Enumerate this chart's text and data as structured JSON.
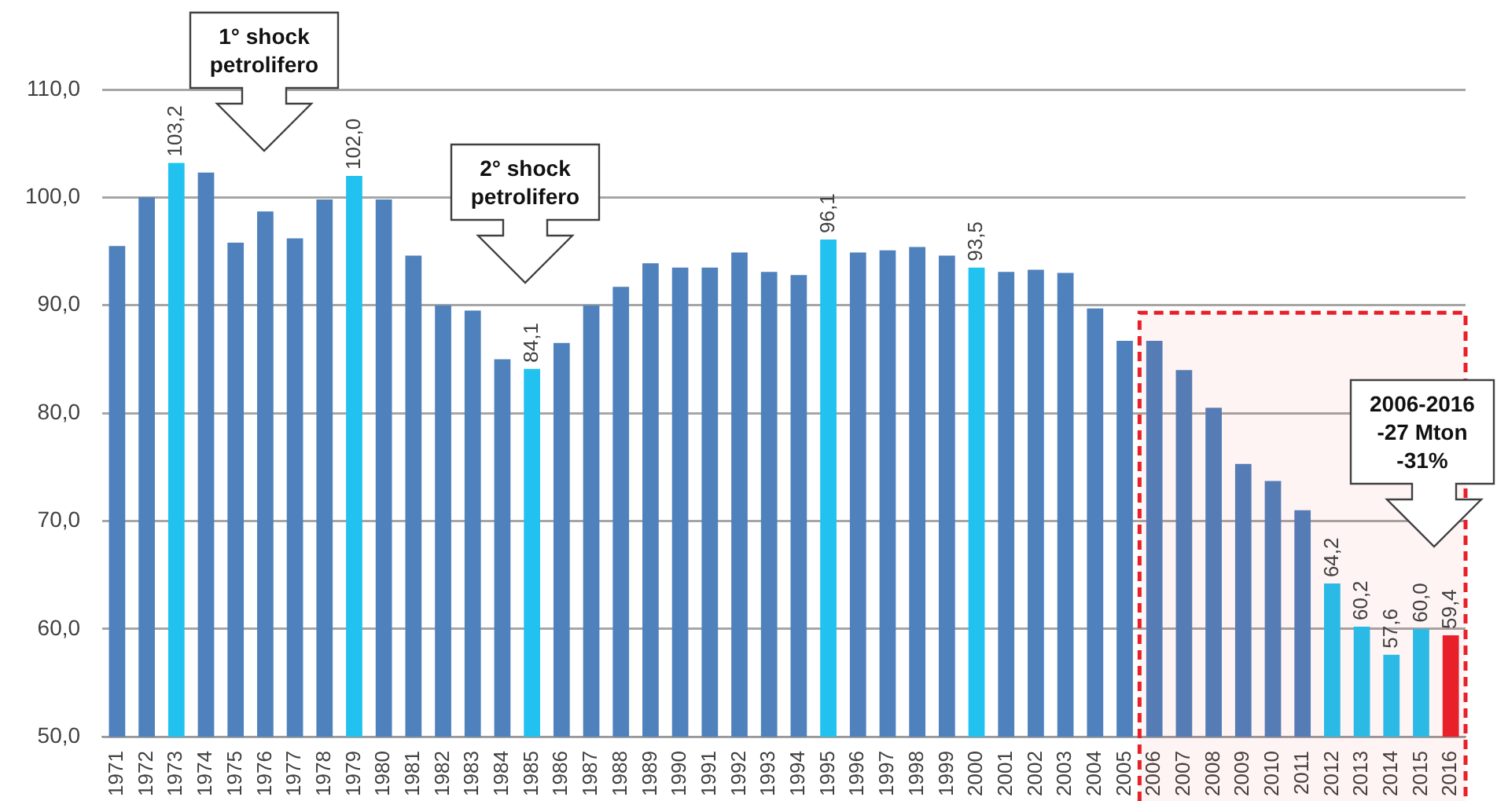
{
  "chart_data": {
    "type": "bar",
    "categories": [
      "1971",
      "1972",
      "1973",
      "1974",
      "1975",
      "1976",
      "1977",
      "1978",
      "1979",
      "1980",
      "1981",
      "1982",
      "1983",
      "1984",
      "1985",
      "1986",
      "1987",
      "1988",
      "1989",
      "1990",
      "1991",
      "1992",
      "1993",
      "1994",
      "1995",
      "1996",
      "1997",
      "1998",
      "1999",
      "2000",
      "2001",
      "2002",
      "2003",
      "2004",
      "2005",
      "2006",
      "2007",
      "2008",
      "2009",
      "2010",
      "2011",
      "2012",
      "2013",
      "2014",
      "2015",
      "2016"
    ],
    "values": [
      95.5,
      100.0,
      103.2,
      102.3,
      95.8,
      98.7,
      96.2,
      99.8,
      102.0,
      99.8,
      94.6,
      90.0,
      89.5,
      85.0,
      84.1,
      86.5,
      90.0,
      91.7,
      93.9,
      93.5,
      93.5,
      94.9,
      93.1,
      92.8,
      96.1,
      94.9,
      95.1,
      95.4,
      94.6,
      93.5,
      93.1,
      93.3,
      93.0,
      89.7,
      86.7,
      86.7,
      84.0,
      80.5,
      75.3,
      73.7,
      71.0,
      64.2,
      60.2,
      57.6,
      60.0,
      59.4
    ],
    "colors": [
      "#4f81bd",
      "#4f81bd",
      "#21c2f0",
      "#4f81bd",
      "#4f81bd",
      "#4f81bd",
      "#4f81bd",
      "#4f81bd",
      "#21c2f0",
      "#4f81bd",
      "#4f81bd",
      "#4f81bd",
      "#4f81bd",
      "#4f81bd",
      "#21c2f0",
      "#4f81bd",
      "#4f81bd",
      "#4f81bd",
      "#4f81bd",
      "#4f81bd",
      "#4f81bd",
      "#4f81bd",
      "#4f81bd",
      "#4f81bd",
      "#21c2f0",
      "#4f81bd",
      "#4f81bd",
      "#4f81bd",
      "#4f81bd",
      "#21c2f0",
      "#4f81bd",
      "#4f81bd",
      "#4f81bd",
      "#4f81bd",
      "#4f81bd",
      "#4f81bd",
      "#4f81bd",
      "#4f81bd",
      "#4f81bd",
      "#4f81bd",
      "#4f81bd",
      "#21c2f0",
      "#21c2f0",
      "#21c2f0",
      "#21c2f0",
      "#e8202a"
    ],
    "value_labels": [
      null,
      null,
      "103,2",
      null,
      null,
      null,
      null,
      null,
      "102,0",
      null,
      null,
      null,
      null,
      null,
      "84,1",
      null,
      null,
      null,
      null,
      null,
      null,
      null,
      null,
      null,
      "96,1",
      null,
      null,
      null,
      null,
      "93,5",
      null,
      null,
      null,
      null,
      null,
      null,
      null,
      null,
      null,
      null,
      null,
      "64,2",
      "60,2",
      "57,6",
      "60,0",
      "59,4"
    ],
    "ylim": [
      50,
      110
    ],
    "yticks": [
      {
        "value": 50,
        "label": "50,0"
      },
      {
        "value": 60,
        "label": "60,0"
      },
      {
        "value": 70,
        "label": "70,0"
      },
      {
        "value": 80,
        "label": "80,0"
      },
      {
        "value": 90,
        "label": "90,0"
      },
      {
        "value": 100,
        "label": "100,0"
      },
      {
        "value": 110,
        "label": "110,0"
      }
    ],
    "grid": "y",
    "legend": false,
    "bands": [
      {
        "axis": "x",
        "from": "2006",
        "to": "2016",
        "color": "#e8202a"
      }
    ],
    "annotations": [
      "1° shock\npetrolifero",
      "2° shock\npetrolifero",
      "2006-2016\n-27 Mton\n-31%"
    ]
  }
}
